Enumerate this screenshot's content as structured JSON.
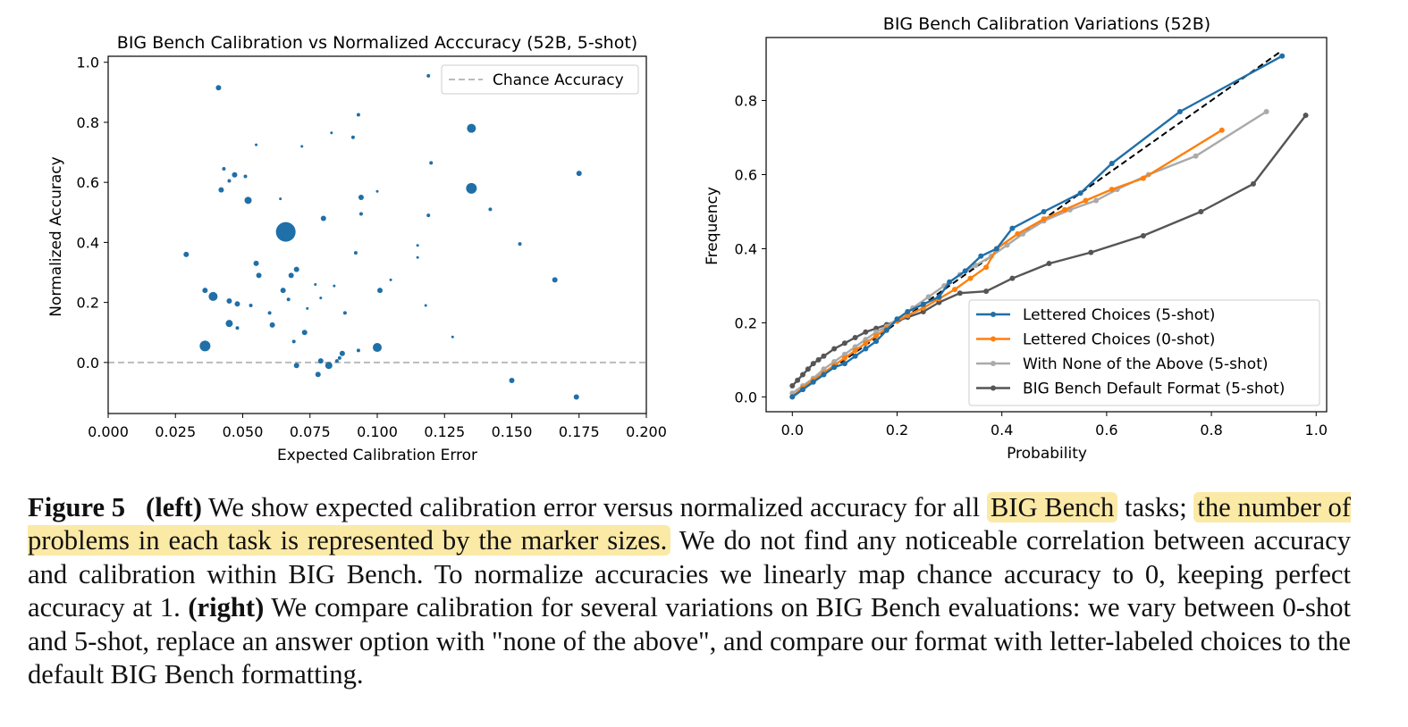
{
  "figure": {
    "left": {
      "chart_data": {
        "type": "scatter",
        "title": "BIG Bench Calibration vs Normalized Acccuracy (52B, 5-shot)",
        "xlabel": "Expected Calibration Error",
        "ylabel": "Normalized Accuracy",
        "xlim": [
          0.0,
          0.2
        ],
        "ylim": [
          -0.17,
          1.02
        ],
        "x_ticks": [
          "0.000",
          "0.025",
          "0.050",
          "0.075",
          "0.100",
          "0.125",
          "0.150",
          "0.175",
          "0.200"
        ],
        "y_ticks": [
          "0.0",
          "0.2",
          "0.4",
          "0.6",
          "0.8",
          "1.0"
        ],
        "legend": {
          "position": "top-right",
          "entries": [
            "Chance Accuracy"
          ]
        },
        "reference_line": {
          "name": "Chance Accuracy",
          "y": 0.0,
          "style": "dashed",
          "color": "#bbbbbb"
        },
        "marker_color": "#1f6fa8",
        "points": [
          {
            "x": 0.041,
            "y": 0.915,
            "s": 3
          },
          {
            "x": 0.119,
            "y": 0.955,
            "s": 2
          },
          {
            "x": 0.135,
            "y": 0.78,
            "s": 5
          },
          {
            "x": 0.135,
            "y": 0.58,
            "s": 6
          },
          {
            "x": 0.175,
            "y": 0.63,
            "s": 3
          },
          {
            "x": 0.066,
            "y": 0.435,
            "s": 11
          },
          {
            "x": 0.093,
            "y": 0.825,
            "s": 2
          },
          {
            "x": 0.091,
            "y": 0.75,
            "s": 2
          },
          {
            "x": 0.083,
            "y": 0.765,
            "s": 1.5
          },
          {
            "x": 0.072,
            "y": 0.72,
            "s": 1.5
          },
          {
            "x": 0.055,
            "y": 0.725,
            "s": 1.5
          },
          {
            "x": 0.12,
            "y": 0.665,
            "s": 2
          },
          {
            "x": 0.043,
            "y": 0.645,
            "s": 2
          },
          {
            "x": 0.047,
            "y": 0.625,
            "s": 3
          },
          {
            "x": 0.051,
            "y": 0.62,
            "s": 2
          },
          {
            "x": 0.045,
            "y": 0.605,
            "s": 2
          },
          {
            "x": 0.042,
            "y": 0.575,
            "s": 3
          },
          {
            "x": 0.052,
            "y": 0.54,
            "s": 4
          },
          {
            "x": 0.064,
            "y": 0.545,
            "s": 1.5
          },
          {
            "x": 0.094,
            "y": 0.55,
            "s": 3
          },
          {
            "x": 0.1,
            "y": 0.57,
            "s": 1.5
          },
          {
            "x": 0.094,
            "y": 0.495,
            "s": 2
          },
          {
            "x": 0.08,
            "y": 0.48,
            "s": 3
          },
          {
            "x": 0.119,
            "y": 0.49,
            "s": 2
          },
          {
            "x": 0.142,
            "y": 0.51,
            "s": 2
          },
          {
            "x": 0.153,
            "y": 0.395,
            "s": 2
          },
          {
            "x": 0.115,
            "y": 0.39,
            "s": 1.5
          },
          {
            "x": 0.092,
            "y": 0.365,
            "s": 2
          },
          {
            "x": 0.029,
            "y": 0.36,
            "s": 3
          },
          {
            "x": 0.055,
            "y": 0.33,
            "s": 3
          },
          {
            "x": 0.115,
            "y": 0.35,
            "s": 1.5
          },
          {
            "x": 0.07,
            "y": 0.31,
            "s": 3
          },
          {
            "x": 0.056,
            "y": 0.29,
            "s": 3
          },
          {
            "x": 0.068,
            "y": 0.29,
            "s": 3
          },
          {
            "x": 0.105,
            "y": 0.275,
            "s": 1.5
          },
          {
            "x": 0.077,
            "y": 0.26,
            "s": 1.5
          },
          {
            "x": 0.084,
            "y": 0.255,
            "s": 1.5
          },
          {
            "x": 0.101,
            "y": 0.24,
            "s": 3
          },
          {
            "x": 0.065,
            "y": 0.24,
            "s": 3
          },
          {
            "x": 0.166,
            "y": 0.275,
            "s": 3
          },
          {
            "x": 0.036,
            "y": 0.24,
            "s": 3
          },
          {
            "x": 0.039,
            "y": 0.22,
            "s": 5
          },
          {
            "x": 0.045,
            "y": 0.205,
            "s": 3
          },
          {
            "x": 0.048,
            "y": 0.195,
            "s": 3
          },
          {
            "x": 0.053,
            "y": 0.19,
            "s": 2
          },
          {
            "x": 0.067,
            "y": 0.21,
            "s": 2
          },
          {
            "x": 0.079,
            "y": 0.215,
            "s": 1.5
          },
          {
            "x": 0.074,
            "y": 0.18,
            "s": 1.5
          },
          {
            "x": 0.118,
            "y": 0.19,
            "s": 1.5
          },
          {
            "x": 0.06,
            "y": 0.165,
            "s": 2
          },
          {
            "x": 0.088,
            "y": 0.165,
            "s": 2
          },
          {
            "x": 0.045,
            "y": 0.13,
            "s": 4
          },
          {
            "x": 0.048,
            "y": 0.115,
            "s": 2
          },
          {
            "x": 0.061,
            "y": 0.125,
            "s": 3
          },
          {
            "x": 0.073,
            "y": 0.1,
            "s": 3
          },
          {
            "x": 0.069,
            "y": 0.07,
            "s": 2
          },
          {
            "x": 0.128,
            "y": 0.085,
            "s": 1.5
          },
          {
            "x": 0.036,
            "y": 0.055,
            "s": 6
          },
          {
            "x": 0.1,
            "y": 0.05,
            "s": 5
          },
          {
            "x": 0.093,
            "y": 0.04,
            "s": 2
          },
          {
            "x": 0.087,
            "y": 0.03,
            "s": 3
          },
          {
            "x": 0.086,
            "y": 0.015,
            "s": 2
          },
          {
            "x": 0.079,
            "y": 0.005,
            "s": 3
          },
          {
            "x": 0.085,
            "y": 0.005,
            "s": 2
          },
          {
            "x": 0.07,
            "y": -0.01,
            "s": 3
          },
          {
            "x": 0.082,
            "y": -0.01,
            "s": 4
          },
          {
            "x": 0.078,
            "y": -0.04,
            "s": 3
          },
          {
            "x": 0.15,
            "y": -0.06,
            "s": 3
          },
          {
            "x": 0.174,
            "y": -0.115,
            "s": 3
          }
        ]
      }
    },
    "right": {
      "chart_data": {
        "type": "line",
        "title": "BIG Bench Calibration Variations (52B)",
        "xlabel": "Probability",
        "ylabel": "Frequency",
        "xlim": [
          -0.05,
          1.02
        ],
        "ylim": [
          -0.04,
          0.97
        ],
        "x_ticks": [
          "0.0",
          "0.2",
          "0.4",
          "0.6",
          "0.8",
          "1.0"
        ],
        "y_ticks": [
          "0.0",
          "0.2",
          "0.4",
          "0.6",
          "0.8"
        ],
        "legend": {
          "position": "bottom-right"
        },
        "diagonal": {
          "from": [
            0,
            0
          ],
          "to": [
            0.93,
            0.93
          ],
          "style": "dashed",
          "color": "#000000"
        },
        "series": [
          {
            "name": "Lettered Choices (5-shot)",
            "color": "#1f6fa8",
            "x": [
              0.0,
              0.02,
              0.04,
              0.06,
              0.08,
              0.1,
              0.12,
              0.14,
              0.16,
              0.18,
              0.2,
              0.22,
              0.25,
              0.28,
              0.3,
              0.33,
              0.36,
              0.39,
              0.42,
              0.48,
              0.55,
              0.61,
              0.74,
              0.935
            ],
            "y": [
              0.0,
              0.02,
              0.04,
              0.06,
              0.08,
              0.09,
              0.11,
              0.13,
              0.15,
              0.18,
              0.21,
              0.23,
              0.25,
              0.27,
              0.31,
              0.34,
              0.38,
              0.4,
              0.455,
              0.5,
              0.55,
              0.63,
              0.77,
              0.92
            ]
          },
          {
            "name": "Lettered Choices (0-shot)",
            "color": "#ff7f0e",
            "x": [
              0.0,
              0.02,
              0.04,
              0.06,
              0.08,
              0.1,
              0.12,
              0.14,
              0.16,
              0.18,
              0.2,
              0.22,
              0.25,
              0.28,
              0.31,
              0.34,
              0.37,
              0.39,
              0.43,
              0.48,
              0.52,
              0.56,
              0.61,
              0.67,
              0.82
            ],
            "y": [
              0.0,
              0.025,
              0.045,
              0.065,
              0.085,
              0.105,
              0.125,
              0.145,
              0.165,
              0.185,
              0.205,
              0.22,
              0.24,
              0.265,
              0.29,
              0.32,
              0.35,
              0.4,
              0.44,
              0.48,
              0.505,
              0.53,
              0.56,
              0.59,
              0.72
            ]
          },
          {
            "name": "With None of the Above (5-shot)",
            "color": "#aaaaaa",
            "x": [
              0.0,
              0.02,
              0.04,
              0.06,
              0.08,
              0.1,
              0.12,
              0.14,
              0.16,
              0.18,
              0.2,
              0.23,
              0.26,
              0.29,
              0.32,
              0.35,
              0.38,
              0.41,
              0.44,
              0.48,
              0.53,
              0.58,
              0.62,
              0.68,
              0.77,
              0.905
            ],
            "y": [
              0.01,
              0.03,
              0.05,
              0.075,
              0.095,
              0.115,
              0.135,
              0.155,
              0.175,
              0.19,
              0.21,
              0.24,
              0.27,
              0.3,
              0.33,
              0.355,
              0.38,
              0.41,
              0.44,
              0.475,
              0.505,
              0.53,
              0.56,
              0.6,
              0.65,
              0.77
            ]
          },
          {
            "name": "BIG Bench Default Format (5-shot)",
            "color": "#555555",
            "x": [
              0.0,
              0.01,
              0.02,
              0.03,
              0.04,
              0.05,
              0.06,
              0.08,
              0.1,
              0.12,
              0.14,
              0.16,
              0.18,
              0.2,
              0.22,
              0.25,
              0.28,
              0.32,
              0.37,
              0.42,
              0.49,
              0.57,
              0.67,
              0.78,
              0.88,
              0.98
            ],
            "y": [
              0.03,
              0.045,
              0.06,
              0.075,
              0.09,
              0.1,
              0.11,
              0.13,
              0.145,
              0.16,
              0.175,
              0.185,
              0.195,
              0.205,
              0.215,
              0.23,
              0.255,
              0.28,
              0.285,
              0.32,
              0.36,
              0.39,
              0.435,
              0.5,
              0.575,
              0.76
            ]
          }
        ]
      }
    }
  },
  "caption": {
    "figure_label": "Figure 5",
    "left_tag": "(left)",
    "text_1": " We show expected calibration error versus normalized accuracy for all ",
    "highlight_1": "BIG Bench",
    "text_2": " tasks; ",
    "highlight_2": "the number of problems in each task is represented by the marker sizes.",
    "text_3": " We do not find any noticeable correlation between accuracy and calibration within BIG Bench. To normalize accuracies we linearly map chance accuracy to 0, keeping perfect accuracy at 1. ",
    "right_tag": "(right)",
    "text_4": " We compare calibration for several variations on BIG Bench evaluations: we vary between 0-shot and 5-shot, replace an answer option with \"none of the above\", and compare our format with letter-labeled choices to the default BIG Bench formatting."
  }
}
